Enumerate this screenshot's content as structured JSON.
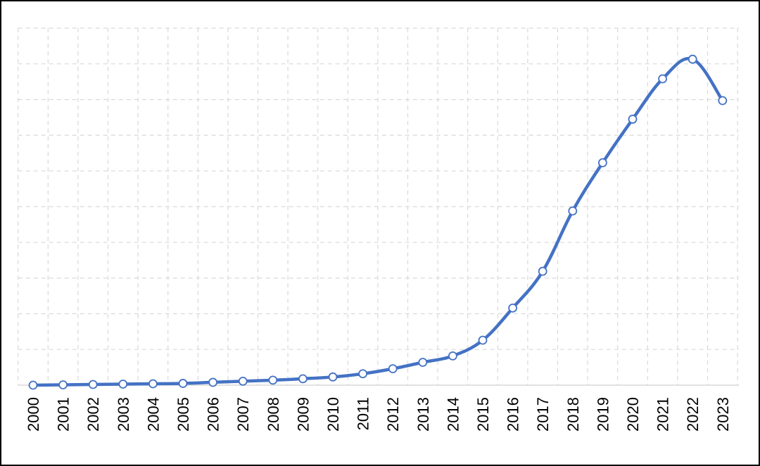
{
  "chart_data": {
    "type": "line",
    "title": "",
    "xlabel": "",
    "ylabel": "",
    "categories": [
      "2000",
      "2001",
      "2002",
      "2003",
      "2004",
      "2005",
      "2006",
      "2007",
      "2008",
      "2009",
      "2010",
      "2011",
      "2012",
      "2013",
      "2014",
      "2015",
      "2016",
      "2017",
      "2018",
      "2019",
      "2020",
      "2021",
      "2022",
      "2023"
    ],
    "series": [
      {
        "values": [
          0,
          0.1,
          0.2,
          0.3,
          0.4,
          0.5,
          0.8,
          1.1,
          1.4,
          1.8,
          2.3,
          3.2,
          4.6,
          6.4,
          8.2,
          12.6,
          21.6,
          31.9,
          48.8,
          62.3,
          74.5,
          85.8,
          91.3,
          79.7
        ]
      }
    ],
    "ylim": [
      0,
      100
    ],
    "y_gridline_count": 10,
    "grid": true,
    "grid_style": "dashed",
    "legend": "none",
    "y_tick_labels_visible": false,
    "colors": {
      "line": "#4472c4",
      "marker_fill": "#ffffff",
      "grid": "#d9d9d9",
      "axis": "#d9d9d9"
    }
  }
}
